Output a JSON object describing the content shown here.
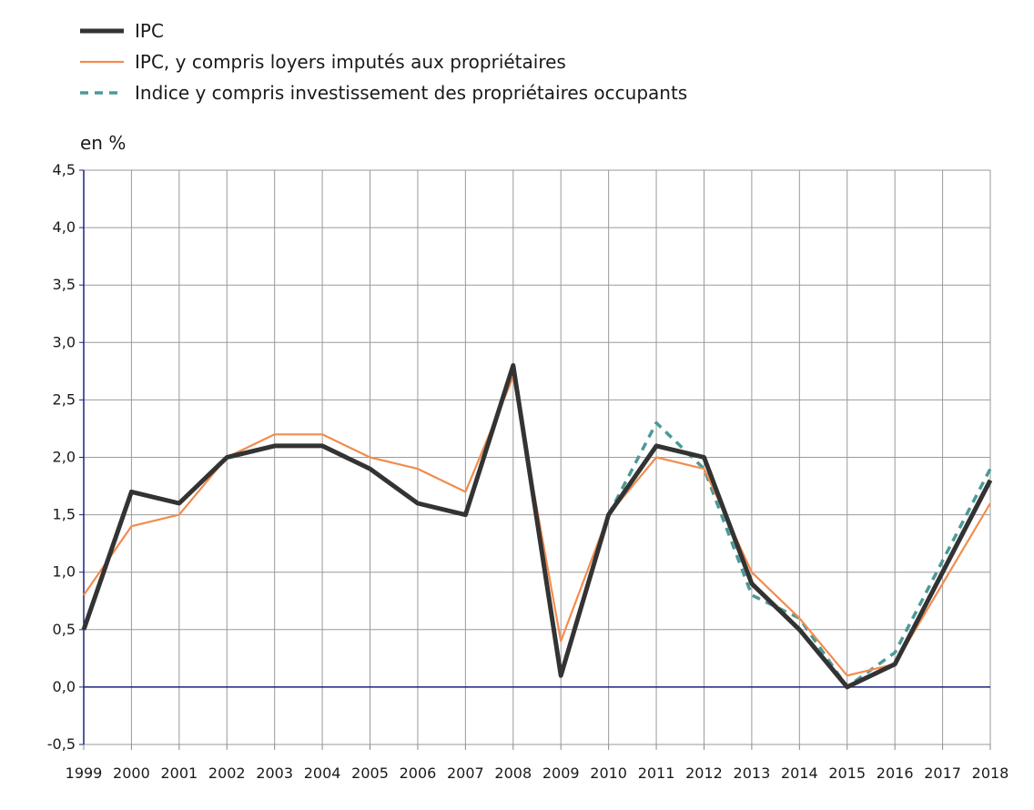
{
  "chart_data": {
    "type": "line",
    "unit_label": "en %",
    "x": [
      1999,
      2000,
      2001,
      2002,
      2003,
      2004,
      2005,
      2006,
      2007,
      2008,
      2009,
      2010,
      2011,
      2012,
      2013,
      2014,
      2015,
      2016,
      2017,
      2018
    ],
    "x_tick_labels": [
      "1999",
      "2000",
      "2001",
      "2002",
      "2003",
      "2004",
      "2005",
      "2006",
      "2007",
      "2008",
      "2009",
      "2010",
      "2011",
      "2012",
      "2013",
      "2014",
      "2015",
      "2016",
      "2017",
      "2018"
    ],
    "ylim": [
      -0.5,
      4.5
    ],
    "y_ticks": [
      -0.5,
      0.0,
      0.5,
      1.0,
      1.5,
      2.0,
      2.5,
      3.0,
      3.5,
      4.0,
      4.5
    ],
    "y_tick_labels": [
      "-0,5",
      "0,0",
      "0,5",
      "1,0",
      "1,5",
      "2,0",
      "2,5",
      "3,0",
      "3,5",
      "4,0",
      "4,5"
    ],
    "grid": true,
    "legend_position": "top-left",
    "series": [
      {
        "name": "IPC",
        "color": "#333333",
        "style": "solid-thick",
        "values": [
          0.5,
          1.7,
          1.6,
          2.0,
          2.1,
          2.1,
          1.9,
          1.6,
          1.5,
          2.8,
          0.1,
          1.5,
          2.1,
          2.0,
          0.9,
          0.5,
          0.0,
          0.2,
          1.0,
          1.8
        ]
      },
      {
        "name": "IPC, y compris loyers imputés aux propriétaires",
        "color": "#f28c4e",
        "style": "solid-thin",
        "values": [
          0.8,
          1.4,
          1.5,
          2.0,
          2.2,
          2.2,
          2.0,
          1.9,
          1.7,
          2.7,
          0.4,
          1.5,
          2.0,
          1.9,
          1.0,
          0.6,
          0.1,
          0.2,
          0.9,
          1.6
        ]
      },
      {
        "name": "Indice y compris investissement des propriétaires occupants",
        "color": "#4a9a98",
        "style": "dashed",
        "values": [
          null,
          null,
          null,
          null,
          null,
          null,
          null,
          null,
          null,
          null,
          null,
          1.5,
          2.3,
          1.9,
          0.8,
          0.6,
          0.0,
          0.3,
          1.1,
          1.9
        ]
      }
    ]
  }
}
